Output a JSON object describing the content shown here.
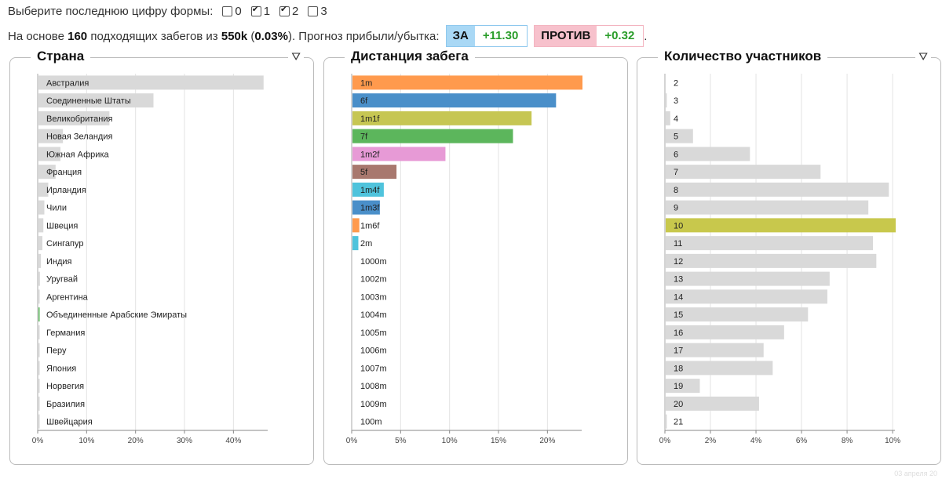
{
  "header": {
    "select_label": "Выберите последнюю цифру формы:",
    "options": [
      {
        "label": "0",
        "checked": false
      },
      {
        "label": "1",
        "checked": true
      },
      {
        "label": "2",
        "checked": true
      },
      {
        "label": "3",
        "checked": false
      }
    ],
    "summary_prefix": "На основе",
    "summary_count": "160",
    "summary_mid": "подходящих забегов из",
    "summary_total": "550k",
    "summary_pct_open": "(",
    "summary_pct": "0.03%",
    "summary_pct_close": ").",
    "summary_forecast": "Прогноз прибыли/убытка:",
    "za_label": "ЗА",
    "za_value": "+11.30",
    "protiv_label": "ПРОТИВ",
    "protiv_value": "+0.32",
    "tail": "."
  },
  "footer": "03 апреля 20",
  "chart_data": [
    {
      "type": "bar",
      "title": "Страна",
      "categories": [
        "Австралия",
        "Соединенные Штаты",
        "Великобритания",
        "Новая Зеландия",
        "Южная Африка",
        "Франция",
        "Ирландия",
        "Чили",
        "Швеция",
        "Сингапур",
        "Индия",
        "Уругвай",
        "Аргентина",
        "Объединенные Арабские Эмираты",
        "Германия",
        "Перу",
        "Япония",
        "Норвегия",
        "Бразилия",
        "Швейцария"
      ],
      "values": [
        46,
        23.5,
        14.5,
        5,
        4.5,
        3.5,
        2,
        1.2,
        1,
        0.8,
        0.5,
        0.3,
        0.2,
        0.2,
        0.1,
        0.1,
        0.1,
        0.1,
        0.1,
        0.1
      ],
      "colors": [
        "#d9d9d9",
        "#d9d9d9",
        "#d9d9d9",
        "#d9d9d9",
        "#d9d9d9",
        "#d9d9d9",
        "#d9d9d9",
        "#d9d9d9",
        "#d9d9d9",
        "#d9d9d9",
        "#d9d9d9",
        "#d9d9d9",
        "#d9d9d9",
        "#5cb85c",
        "#d9d9d9",
        "#d9d9d9",
        "#d9d9d9",
        "#d9d9d9",
        "#d9d9d9",
        "#d9d9d9"
      ],
      "xlim": [
        0,
        47
      ],
      "ticks": [
        0,
        10,
        20,
        30,
        40
      ],
      "tick_labels": [
        "0%",
        "10%",
        "20%",
        "30%",
        "40%"
      ],
      "filter_icon": true
    },
    {
      "type": "bar",
      "title": "Дистанция забега",
      "categories": [
        "1m",
        "6f",
        "1m1f",
        "7f",
        "1m2f",
        "5f",
        "1m4f",
        "1m3f",
        "1m6f",
        "2m",
        "1000m",
        "1002m",
        "1003m",
        "1004m",
        "1005m",
        "1006m",
        "1007m",
        "1008m",
        "1009m",
        "100m"
      ],
      "values": [
        23.5,
        20.8,
        18.3,
        16.4,
        9.5,
        4.5,
        3.2,
        2.8,
        0.7,
        0.6,
        0,
        0,
        0,
        0,
        0,
        0,
        0,
        0,
        0,
        0
      ],
      "colors": [
        "#ff9a4d",
        "#4a8fc9",
        "#c6c653",
        "#5cb65c",
        "#e79ad6",
        "#a8786e",
        "#4fc3dc",
        "#4a8fc9",
        "#ff9a4d",
        "#4fc3dc",
        "#d9d9d9",
        "#d9d9d9",
        "#d9d9d9",
        "#d9d9d9",
        "#d9d9d9",
        "#d9d9d9",
        "#d9d9d9",
        "#d9d9d9",
        "#d9d9d9",
        "#d9d9d9"
      ],
      "xlim": [
        0,
        23.5
      ],
      "ticks": [
        0,
        5,
        10,
        15,
        20
      ],
      "tick_labels": [
        "0%",
        "5%",
        "10%",
        "15%",
        "20%"
      ],
      "filter_icon": false
    },
    {
      "type": "bar",
      "title": "Количество участников",
      "categories": [
        "2",
        "3",
        "4",
        "5",
        "6",
        "7",
        "8",
        "9",
        "10",
        "11",
        "12",
        "13",
        "14",
        "15",
        "16",
        "17",
        "18",
        "19",
        "20",
        "21"
      ],
      "values": [
        0,
        0.05,
        0.2,
        1.2,
        3.7,
        6.8,
        9.8,
        8.9,
        10.1,
        9.1,
        9.25,
        7.2,
        7.1,
        6.25,
        5.2,
        4.3,
        4.7,
        1.5,
        4.1,
        0.05
      ],
      "colors": [
        "#d9d9d9",
        "#d9d9d9",
        "#d9d9d9",
        "#d9d9d9",
        "#d9d9d9",
        "#d9d9d9",
        "#d9d9d9",
        "#d9d9d9",
        "#c8c84c",
        "#d9d9d9",
        "#d9d9d9",
        "#d9d9d9",
        "#d9d9d9",
        "#d9d9d9",
        "#d9d9d9",
        "#d9d9d9",
        "#d9d9d9",
        "#d9d9d9",
        "#d9d9d9",
        "#d9d9d9"
      ],
      "xlim": [
        0,
        10.1
      ],
      "ticks": [
        0,
        2,
        4,
        6,
        8,
        10
      ],
      "tick_labels": [
        "0%",
        "2%",
        "4%",
        "6%",
        "8%",
        "10%"
      ],
      "filter_icon": true
    }
  ]
}
